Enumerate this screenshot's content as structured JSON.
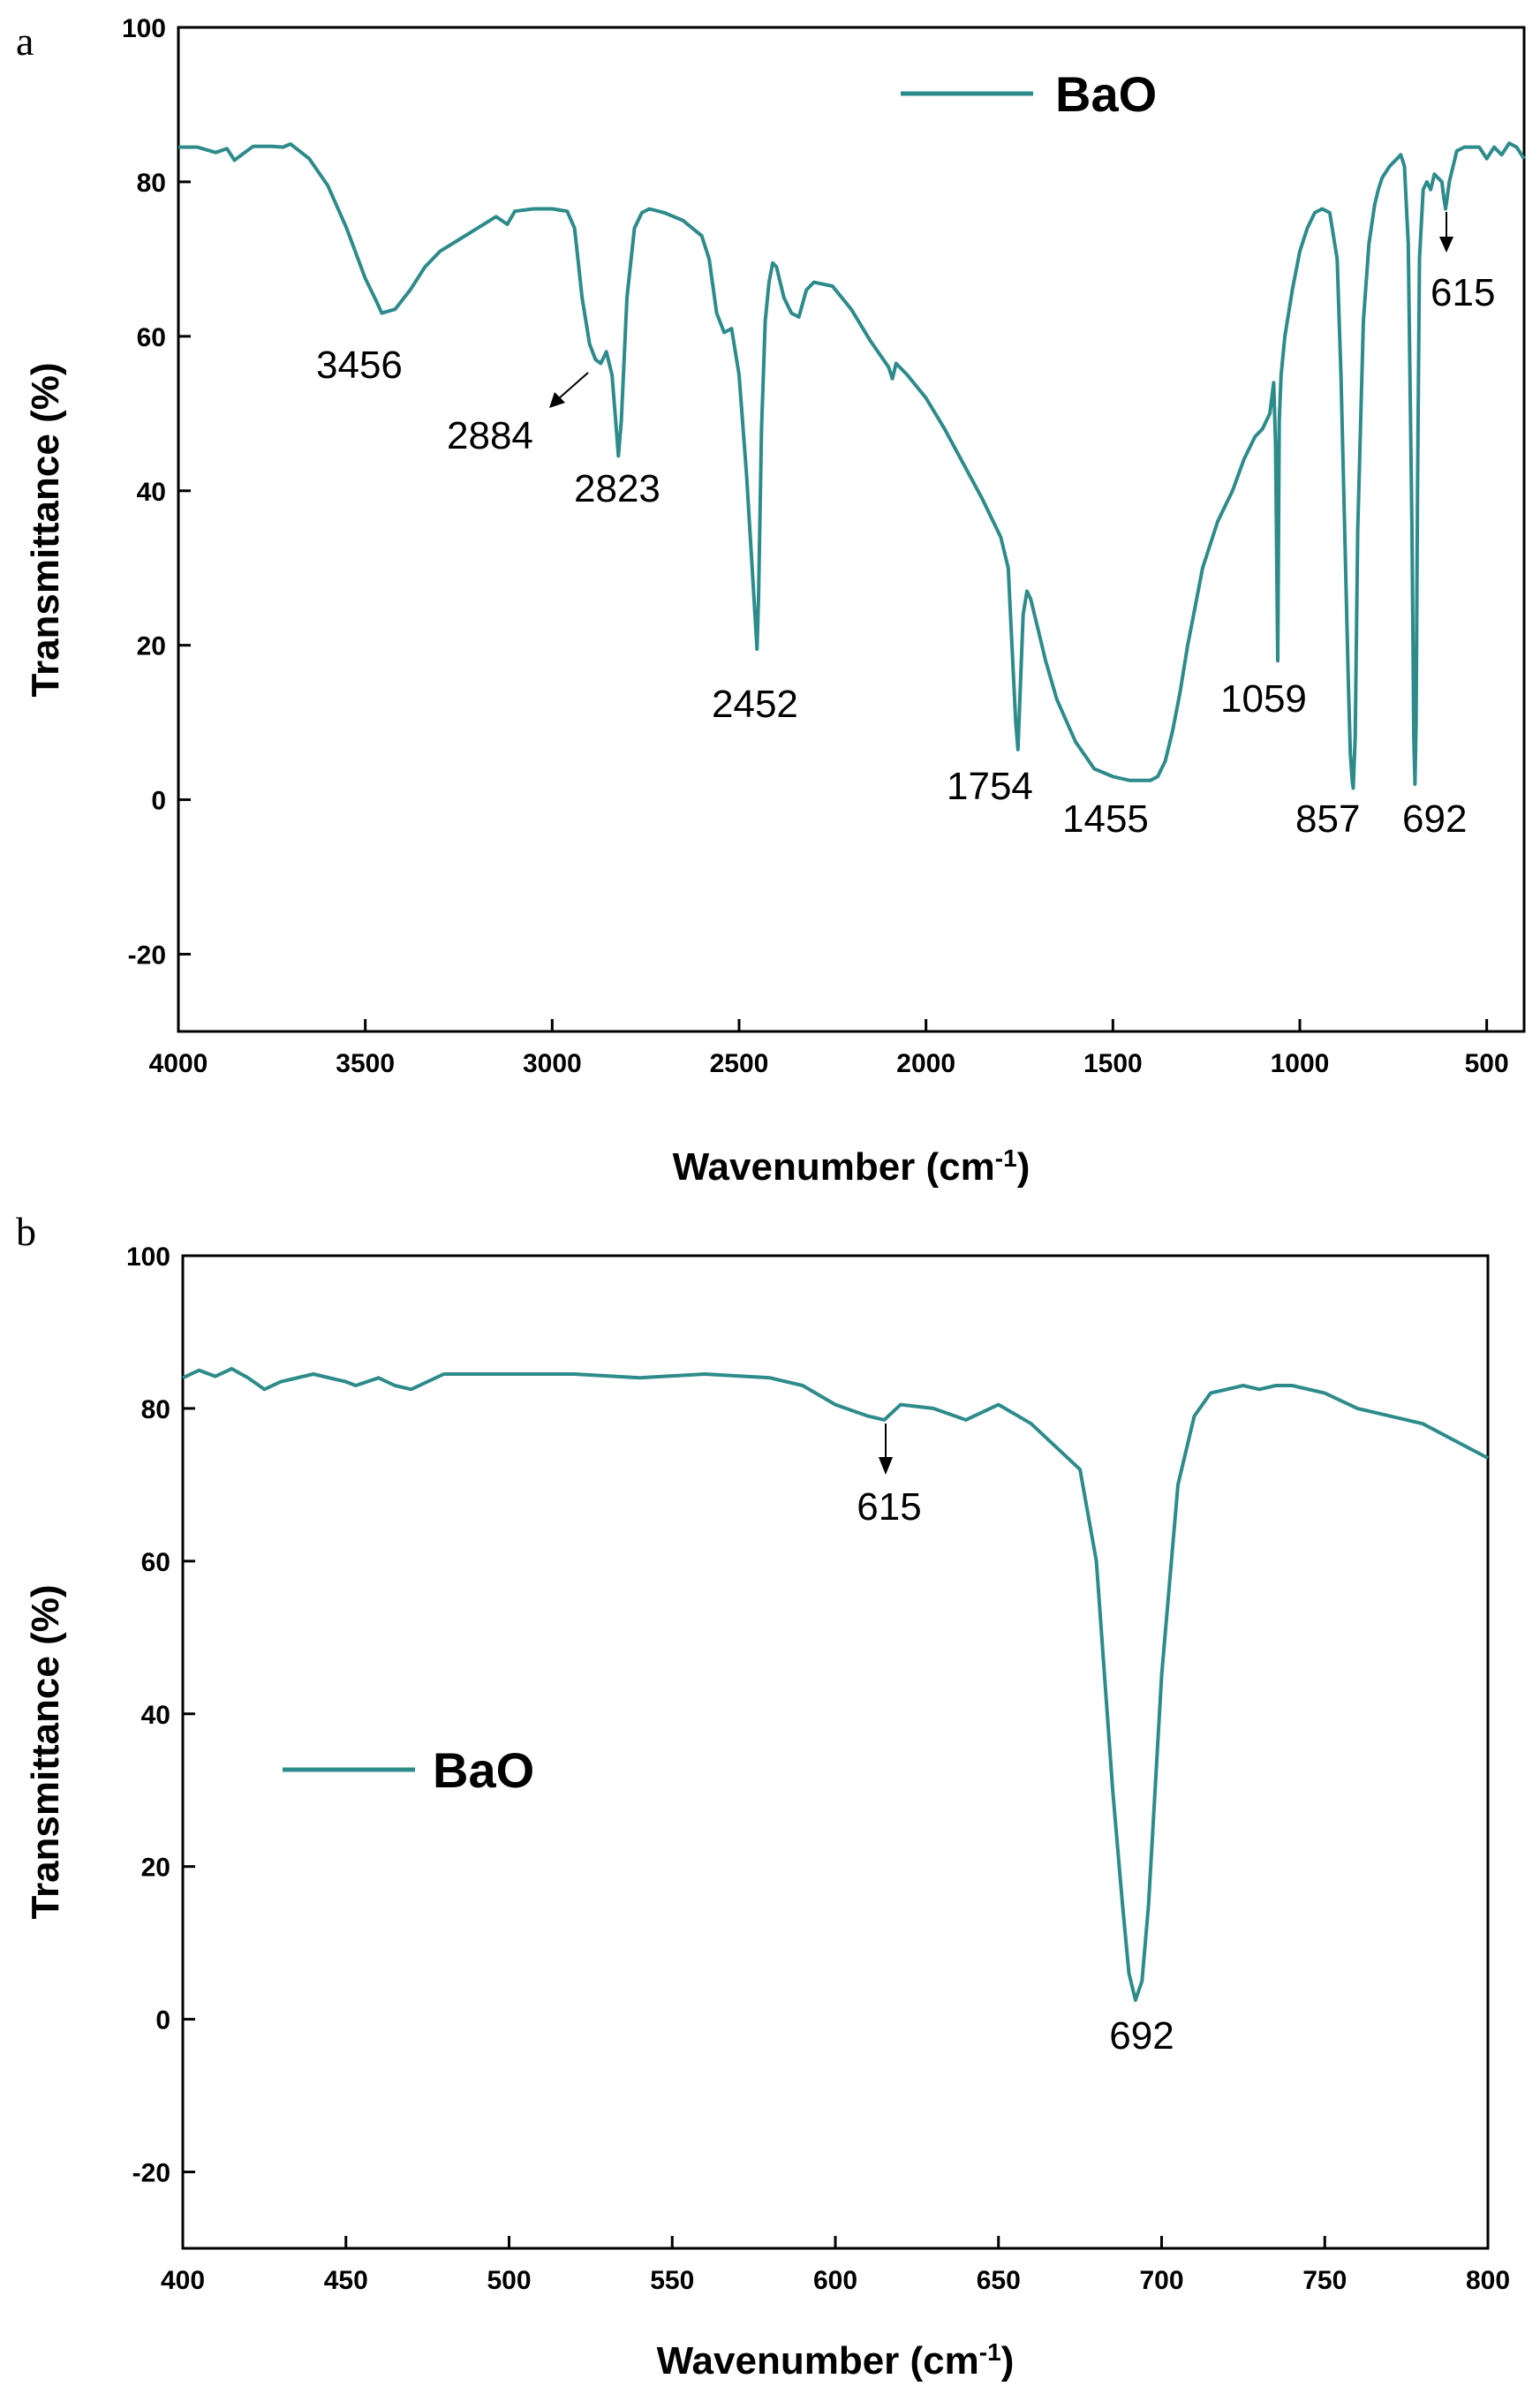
{
  "colors": {
    "series": "#2E8B8B",
    "axis": "#000000"
  },
  "chart_data": [
    {
      "panel": "a",
      "type": "line",
      "xlabel_main": "Wavenumber (cm",
      "xlabel_sup": "-1",
      "xlabel_close": ")",
      "ylabel": "Transmittance (%)",
      "xlim": [
        4000,
        400
      ],
      "ylim": [
        -30,
        100
      ],
      "xticks": [
        4000,
        3500,
        3000,
        2500,
        2000,
        1500,
        1000,
        500
      ],
      "yticks": [
        100,
        80,
        60,
        40,
        20,
        0,
        -20
      ],
      "legend": "top-center",
      "series": [
        {
          "name": "BaO",
          "x": [
            4000,
            3950,
            3900,
            3870,
            3850,
            3800,
            3750,
            3720,
            3700,
            3650,
            3600,
            3550,
            3500,
            3470,
            3456,
            3420,
            3380,
            3340,
            3300,
            3250,
            3200,
            3150,
            3120,
            3100,
            3050,
            3000,
            2960,
            2940,
            2920,
            2900,
            2884,
            2870,
            2855,
            2840,
            2830,
            2823,
            2815,
            2800,
            2780,
            2760,
            2740,
            2700,
            2650,
            2600,
            2580,
            2560,
            2540,
            2520,
            2500,
            2480,
            2465,
            2455,
            2452,
            2448,
            2440,
            2430,
            2420,
            2410,
            2400,
            2380,
            2360,
            2340,
            2320,
            2300,
            2250,
            2200,
            2150,
            2100,
            2090,
            2080,
            2050,
            2000,
            1950,
            1900,
            1850,
            1800,
            1780,
            1770,
            1760,
            1754,
            1748,
            1740,
            1730,
            1720,
            1700,
            1680,
            1650,
            1600,
            1550,
            1500,
            1455,
            1400,
            1380,
            1360,
            1340,
            1320,
            1300,
            1280,
            1260,
            1240,
            1220,
            1200,
            1180,
            1150,
            1120,
            1100,
            1080,
            1070,
            1065,
            1059,
            1055,
            1050,
            1040,
            1020,
            1000,
            980,
            960,
            940,
            920,
            900,
            890,
            880,
            870,
            865,
            860,
            857,
            852,
            845,
            830,
            815,
            800,
            790,
            780,
            760,
            740,
            730,
            720,
            710,
            700,
            695,
            692,
            689,
            685,
            680,
            670,
            660,
            650,
            640,
            630,
            620,
            615,
            610,
            600,
            580,
            560,
            540,
            520,
            500,
            480,
            460,
            440,
            420,
            400
          ],
          "y": [
            84.5,
            84.5,
            83.8,
            84.3,
            82.8,
            84.6,
            84.6,
            84.5,
            84.9,
            83.0,
            79.5,
            74.0,
            67.5,
            64.5,
            63.0,
            63.5,
            66.0,
            69.0,
            71.0,
            72.5,
            74.0,
            75.5,
            74.5,
            76.2,
            76.5,
            76.5,
            76.2,
            74.0,
            65.0,
            59.0,
            57.0,
            56.5,
            58.0,
            55.0,
            49.0,
            44.5,
            49.0,
            65.0,
            74.0,
            76.0,
            76.5,
            76.0,
            75.0,
            73.0,
            70.0,
            63.0,
            60.5,
            61.0,
            55.0,
            42.0,
            30.0,
            22.0,
            19.5,
            26.0,
            48.0,
            62.0,
            67.0,
            69.5,
            69.0,
            65.0,
            63.0,
            62.5,
            66.0,
            67.0,
            66.5,
            63.5,
            59.5,
            56.0,
            54.5,
            56.5,
            55.0,
            52.0,
            48.0,
            43.5,
            39.0,
            34.0,
            30.0,
            20.0,
            10.0,
            6.5,
            14.0,
            24.0,
            27.0,
            26.0,
            22.0,
            18.0,
            13.0,
            7.5,
            4.0,
            3.0,
            2.5,
            2.5,
            3.0,
            5.0,
            9.0,
            14.0,
            20.0,
            25.0,
            30.0,
            33.0,
            36.0,
            38.0,
            40.0,
            44.0,
            47.0,
            48.0,
            50.0,
            54.0,
            46.0,
            18.0,
            49.0,
            55.0,
            60.0,
            66.0,
            71.0,
            74.0,
            76.0,
            76.5,
            76.0,
            70.0,
            55.0,
            35.0,
            15.0,
            6.0,
            2.5,
            1.5,
            8.0,
            35.0,
            62.0,
            72.0,
            77.0,
            79.0,
            80.5,
            82.0,
            83.0,
            83.5,
            82.0,
            72.0,
            35.0,
            8.0,
            2.0,
            10.0,
            40.0,
            70.0,
            79.0,
            80.0,
            79.0,
            81.0,
            80.5,
            80.0,
            78.0,
            76.5,
            80.0,
            84.0,
            84.5,
            84.5,
            84.5,
            83.0,
            84.5,
            83.5,
            85.0,
            84.5,
            83.0
          ],
          "peak_labels": [
            "3456",
            "2884",
            "2823",
            "2452",
            "1754",
            "1455",
            "1059",
            "857",
            "692",
            "615"
          ]
        }
      ]
    },
    {
      "panel": "b",
      "type": "line",
      "xlabel_main": "Wavenumber (cm",
      "xlabel_sup": "-1",
      "xlabel_close": ")",
      "ylabel": "Transmittance (%)",
      "xlim": [
        400,
        800
      ],
      "ylim": [
        -30,
        100
      ],
      "xticks": [
        400,
        450,
        500,
        550,
        600,
        650,
        700,
        750,
        800
      ],
      "yticks": [
        100,
        80,
        60,
        40,
        20,
        0,
        -20
      ],
      "legend": "center-left",
      "series": [
        {
          "name": "BaO",
          "x": [
            400,
            405,
            410,
            415,
            420,
            425,
            430,
            440,
            450,
            453,
            460,
            465,
            470,
            480,
            500,
            520,
            540,
            560,
            580,
            590,
            600,
            610,
            615,
            620,
            630,
            640,
            650,
            660,
            670,
            675,
            680,
            685,
            688,
            690,
            692,
            694,
            696,
            700,
            705,
            710,
            715,
            720,
            725,
            730,
            735,
            740,
            750,
            760,
            780,
            800
          ],
          "y": [
            84.0,
            85.0,
            84.2,
            85.2,
            84.0,
            82.5,
            83.5,
            84.5,
            83.5,
            83.0,
            84.0,
            83.0,
            82.5,
            84.5,
            84.5,
            84.5,
            84.0,
            84.5,
            84.0,
            83.0,
            80.5,
            79.0,
            78.5,
            80.5,
            80.0,
            78.5,
            80.5,
            78.0,
            74.0,
            72.0,
            60.0,
            30.0,
            15.0,
            6.0,
            2.5,
            5.0,
            15.0,
            45.0,
            70.0,
            79.0,
            82.0,
            82.5,
            83.0,
            82.5,
            83.0,
            83.0,
            82.0,
            80.0,
            78.0,
            73.5
          ],
          "peak_labels": [
            "615",
            "692"
          ]
        }
      ]
    }
  ]
}
